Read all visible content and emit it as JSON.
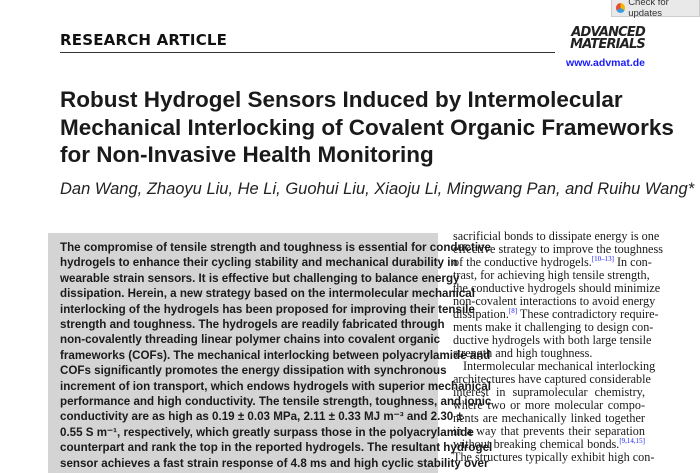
{
  "header": {
    "section": "RESEARCH ARTICLE",
    "journal_logo": "ADVANCED MATERIALS",
    "journal_url": "www.advmat.de",
    "check_updates": "Check for updates"
  },
  "article": {
    "title_lines": [
      "Robust Hydrogel Sensors Induced by Intermolecular",
      "Mechanical Interlocking of Covalent Organic Frameworks",
      "for Non-Invasive Health Monitoring"
    ],
    "authors": "Dan Wang, Zhaoyu Liu, He Li, Guohui Liu, Xiaoju Li, Mingwang Pan, and Ruihu Wang*",
    "abstract_lines": [
      "The compromise of tensile strength and toughness is essential for conductive",
      "hydrogels to enhance their cycling stability and mechanical durability in",
      "wearable strain sensors. It is effective but challenging to balance energy",
      "dissipation. Herein, a new strategy based on the intermolecular mechanical",
      "interlocking of the hydrogels has been proposed for improving their tensile",
      "strength and toughness. The hydrogels are readily fabricated through",
      "non-covalently threading linear polymer chains into covalent organic",
      "frameworks (COFs). The mechanical interlocking between polyacrylamide and",
      "COFs significantly promotes the energy dissipation with synchronous",
      "increment of ion transport, which endows hydrogels with superior mechanical",
      "performance and high conductivity. The tensile strength, toughness, and ionic",
      "conductivity are as high as 0.19 ± 0.03 MPa, 2.11 ± 0.33 MJ m⁻³ and 2.30 ±",
      "0.55 S m⁻¹, respectively, which greatly surpass those in the polyacrylamide",
      "counterpart and rank the top in the reported hydrogels. The resultant hydrogel",
      "sensor achieves a fast strain response of 4.8 ms and high cyclic stability over"
    ],
    "body_lines": [
      {
        "text": "sacrificial bonds to dissipate energy is one"
      },
      {
        "text": "effective strategy to improve the toughness"
      },
      {
        "text": "of the conductive hydrogels.",
        "ref": "[10–13]",
        "after": " In con-"
      },
      {
        "text": "trast, for achieving high tensile strength,"
      },
      {
        "text": "the conductive hydrogels should minimize"
      },
      {
        "text": "non-covalent interactions to avoid energy"
      },
      {
        "text": "dissipation.",
        "ref": "[8]",
        "after": " These contradictory require-"
      },
      {
        "text": "ments make it challenging to design con-"
      },
      {
        "text": "ductive hydrogels with both large tensile"
      },
      {
        "text": "strength and high toughness.",
        "end": true
      },
      {
        "text": "Intermolecular mechanical interlocking",
        "indent": true
      },
      {
        "text": "architectures have captured considerable"
      },
      {
        "text": "interest in supramolecular chemistry,"
      },
      {
        "text": "where two or more molecular compo-"
      },
      {
        "text": "nents are mechanically linked together"
      },
      {
        "text": "in a way that prevents their separation"
      },
      {
        "text": "without breaking chemical bonds.",
        "ref": "[9,14,15]"
      },
      {
        "text": "The structures typically exhibit high con-"
      }
    ]
  },
  "colors": {
    "abstract_bg": "#d4d4d4",
    "link": "#1a1aff"
  }
}
